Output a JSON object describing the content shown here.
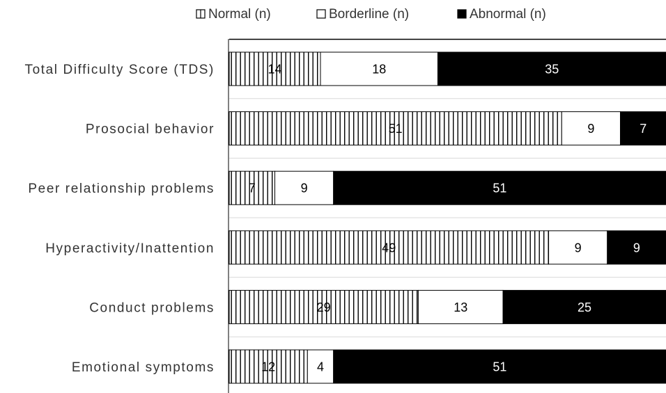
{
  "chart_data": {
    "type": "bar",
    "orientation": "horizontal",
    "stacked": true,
    "categories": [
      "Total Difficulty Score (TDS)",
      "Prosocial behavior",
      "Peer relationship problems",
      "Hyperactivity/Inattention",
      "Conduct problems",
      "Emotional symptoms"
    ],
    "series": [
      {
        "name": "Normal (n)",
        "values": [
          14,
          51,
          7,
          49,
          29,
          12
        ],
        "fill": "vertical-stripes"
      },
      {
        "name": "Borderline (n)",
        "values": [
          18,
          9,
          9,
          9,
          13,
          4
        ],
        "fill": "#ffffff"
      },
      {
        "name": "Abnormal (n)",
        "values": [
          35,
          7,
          51,
          9,
          25,
          51
        ],
        "fill": "#000000"
      }
    ],
    "xlim": [
      0,
      67
    ],
    "legend_position": "top",
    "grid": true,
    "data_labels": true,
    "colors": {
      "stripe": "#000000",
      "bar_outline": "#000000",
      "grid": "#d9d9d9",
      "axis": "#000000"
    }
  }
}
